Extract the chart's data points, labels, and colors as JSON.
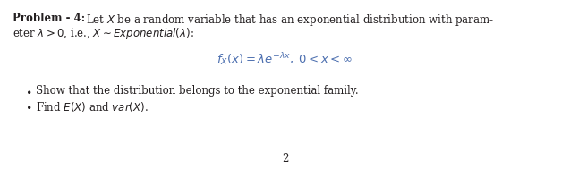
{
  "background_color": "#ffffff",
  "text_color": "#231f20",
  "blue_color": "#4b6eaf",
  "figsize": [
    6.37,
    1.89
  ],
  "dpi": 100,
  "line1_bold": "Problem - 4:",
  "line1_normal": "   Let $X$ be a random variable that has an exponential distribution with param-",
  "line2": "eter $\\lambda > 0$, i.e., $X \\sim \\mathit{Exponential}(\\lambda)$:",
  "formula": "$f_X(x) = \\lambda e^{-\\lambda x}, \\; 0 < x < \\infty$",
  "bullet1": "Show that the distribution belongs to the exponential family.",
  "bullet2_a": "Find $E(X)$ and ",
  "bullet2_b": "$\\mathit{var}(X)$.",
  "page_num": "2",
  "font_size_main": 8.5,
  "font_size_formula": 9.5
}
